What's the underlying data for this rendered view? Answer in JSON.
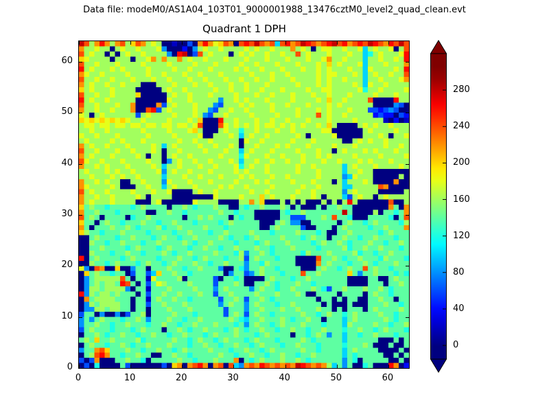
{
  "window": {
    "background": "#ffffff",
    "text_color": "#000000"
  },
  "header": {
    "data_file_label": "Data file: modeM0/AS1A04_103T01_9000001988_13476cztM0_level2_quad_clean.evt"
  },
  "chart_data": {
    "type": "heatmap",
    "title": "Quadrant 1 DPH",
    "xlabel": "",
    "ylabel": "",
    "x_range": [
      0,
      64
    ],
    "y_range": [
      0,
      64
    ],
    "x_tick_values": [
      0,
      10,
      20,
      30,
      40,
      50,
      60
    ],
    "x_tick_labels": [
      "0",
      "10",
      "20",
      "30",
      "40",
      "50",
      "60"
    ],
    "y_tick_values": [
      0,
      10,
      20,
      30,
      40,
      50,
      60
    ],
    "y_tick_labels": [
      "0",
      "10",
      "20",
      "30",
      "40",
      "50",
      "60"
    ],
    "grid_on": false,
    "colormap": "jet",
    "vmin": 0,
    "vmax": 300,
    "colorbar": {
      "tick_values": [
        0,
        40,
        80,
        120,
        160,
        200,
        240,
        280
      ],
      "tick_labels": [
        "0",
        "40",
        "80",
        "120",
        "160",
        "200",
        "240",
        "280"
      ],
      "extend": "both",
      "top_extend_color": "#800000",
      "bottom_extend_color": "#000080",
      "scale_top_value": 320,
      "scale_bottom_value": -15
    },
    "grid": {
      "cols": 64,
      "rows": 64,
      "encoding": "each character is a hex intensity level 0-15; counts value = level * 20; rows listed top (y=63) to bottom (y=0), chars left (x=0) to right (x=63)",
      "rows_top_to_bottom": [
        "ec8bdb8bc8acb8980010030bdb9acb0cdcecbc5cdbcedcbcdecdbcdcedcbdcec",
        "b8898808988988894000204898898888989889888b898089988988958988908c",
        "c898808089889888840de03c898880898988988988c89888988898856898889d",
        "a9888808880889b8b88b8988988898889888988898889889b88988858898898d",
        "c88988898888988889888898889888898898889888988898a89888958889888b",
        "d898889898888988889889888988889898898889888988989888988598888 98d",
        "b988988889888988988898898889888889888988988888989988898589889 88c",
        "c889889888988898898889889888988988988988898888989889888588988 89b",
        "b898898898880008889888988988898898889888889888989888898598898888",
        "a898889888800000898898888898898898898889888898899888889688988889",
        "c8898898888a000008988988898888988898898889888988988898888988 8988",
        "d89889888880000009888988888488989888988889888898a8898888c0000d88",
        "c889888988b0000b3898889888438889898889889888988898988888800004 30",
        "b889889888b00cd38988889884388988988889888898889898889888332343 00",
        "980898888883898888988898438898888988889888988 8c89889888882322032",
        "a9a9a9a9a98898888988898a000d889888988988988898889888898888810201",
        "899899899899899899899 89c000c98989898998989898898a800008989889888",
        "88988988888898 88898889a8000898868898889889888889900000089888 8988",
        "988988898888898888988889008889858988988888980888890000088898 0889",
        "8988889898889888888988988988888098898888898889888880089898898888",
        "b898898889888898589888898898898088988898988898888988898888898898",
        "c889888988988898088988889888988589888988889888988089888989888988",
        "b898889888898088089889888889888698889889888988989888898888988889",
        "c988988898888988048988988988898588988988988988898898889898889888",
        "b889898889888898588988898898889689889888889889888885898889888898",
        "8988898988988889489889888988889898889888889888988885889880000000",
        "8898889898898888588898898889888989888988988888988884598880000080",
        "b889898800889888498889888988889888989888898889888085888980000b00",
        "b988889800088988589888988889898898888988888988988885588888cb0000",
        "c898898888988898890000898898888889889888889889888884898888000008",
        "b889889888898088880000000098888 9888a898889888980888538988089 8888",
        "b898889888800089000000988880 00088b8a0008080800080808d8000000c008",
        "a787767777678777707787677787700767787778707000707787700000 00b70b",
        "b77877767777700778776777777877677700000767787777777e70000807767b",
        "c787077770677877777707787877707677000007733377787c7760007777 607c",
        "a770787767778776778777677776787777700078744007777707877678777768",
        "b707778778767778677877778777677777700787777300777078777767787 77b",
        "a877677787777677776778777677877778777677778777670077877777678777",
        "0078777677877767877677877778767767877778777678770778776778777677",
        "0087767787776778777787677877776777678777877776787787677787767787",
        "0077877776787776787776778776778777877677787777677778677877877767",
        "0087776778776777876778777787776847787677777687778777786776778777",
        "d078777767877776777877678777677837877767770000c77876778777687776",
        "008776787776787767877787767787774776877777 0000b78777677876777877",
        "940cb00a004770777877677877740076477877677770007877678 77c78776777",
        "0a7877677037735a778776777777047734787776777c77877777a74778777676",
        "04788888c707719777780777773077670000787776778777777700007700 7877",
        "04787887dc70737987777877773777870077876777877677777700007770 7787",
        "0488788884077177787777877747877774787767787778763778777877876777",
        "d48788787770737787787778773778777787778777870077770777707877 6777",
        "0b78888777077178778776777773778737787677777777077070770077877077",
        "0487888877077377877787777774787747877767787777707000700077787767",
        "0448878877077077787778777777377747787778778777877070777078777787",
        "3770400403778077778777677777378737877677777877678776787777877677",
        "4747877767787477787767787777787657787778767787707775787777787677",
        "4778776778777677877677877787776747877678777877767775877778776778",
        "3787776777678777077876778777678767787767787767787776778776787776",
        "0778767787767787767787776787778777678777707767874775776778777677",
        "787a77877778677777877678776787776787776777787677777577777700 0707",
        "0787767787677877787776778776778776787776778777677776777870007007",
        "477bca77787767787767877778777677877678777778776777757877770000 70",
        "078cdb77677877007787767777787767787767787767787777757677777007 07",
        "303b000778776077777877677787 77b076787778778767777774760777770070",
        "0306000073000000 30ab0bcdb0bc0c54bcbdcbcbcbedcbcb857470067000db02"
      ]
    }
  }
}
